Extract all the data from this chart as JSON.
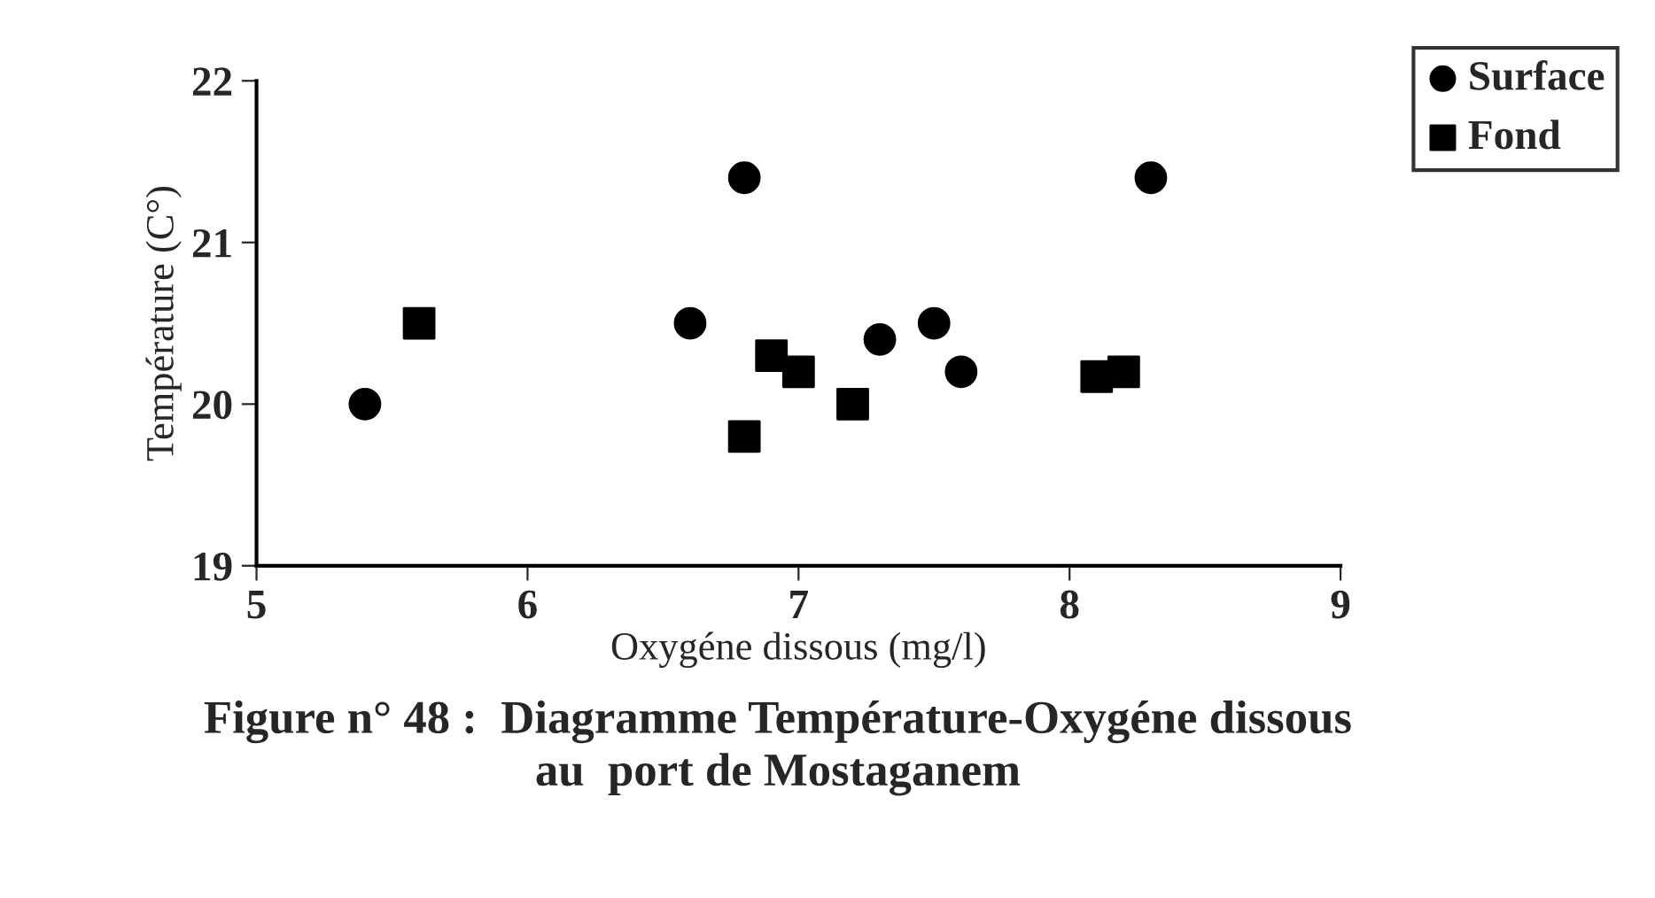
{
  "chart_data": {
    "type": "scatter",
    "title": "Figure n° 48 :  Diagramme Température-Oxygéne dissous\nau  port de Mostaganem",
    "xlabel": "Oxygéne dissous (mg/l)",
    "ylabel": "Température (C°)",
    "xlim": [
      5,
      9
    ],
    "xticks": [
      5,
      6,
      7,
      8,
      9
    ],
    "ylim": [
      19,
      22
    ],
    "yticks": [
      19,
      20,
      21,
      22
    ],
    "grid": false,
    "legend": "top right",
    "series": [
      {
        "name": "Surface",
        "color": "#000000",
        "marker": "circle",
        "x": [
          5.4,
          6.6,
          6.8,
          7.3,
          7.5,
          7.6,
          8.3
        ],
        "values": [
          20.0,
          20.5,
          21.4,
          20.4,
          20.5,
          20.2,
          21.4
        ]
      },
      {
        "name": "Fond",
        "color": "#000000",
        "marker": "square",
        "x": [
          5.6,
          6.8,
          6.9,
          7.0,
          7.2,
          8.1,
          8.2
        ],
        "values": [
          20.5,
          19.8,
          20.3,
          20.2,
          20.0,
          20.17,
          20.2
        ]
      }
    ]
  }
}
